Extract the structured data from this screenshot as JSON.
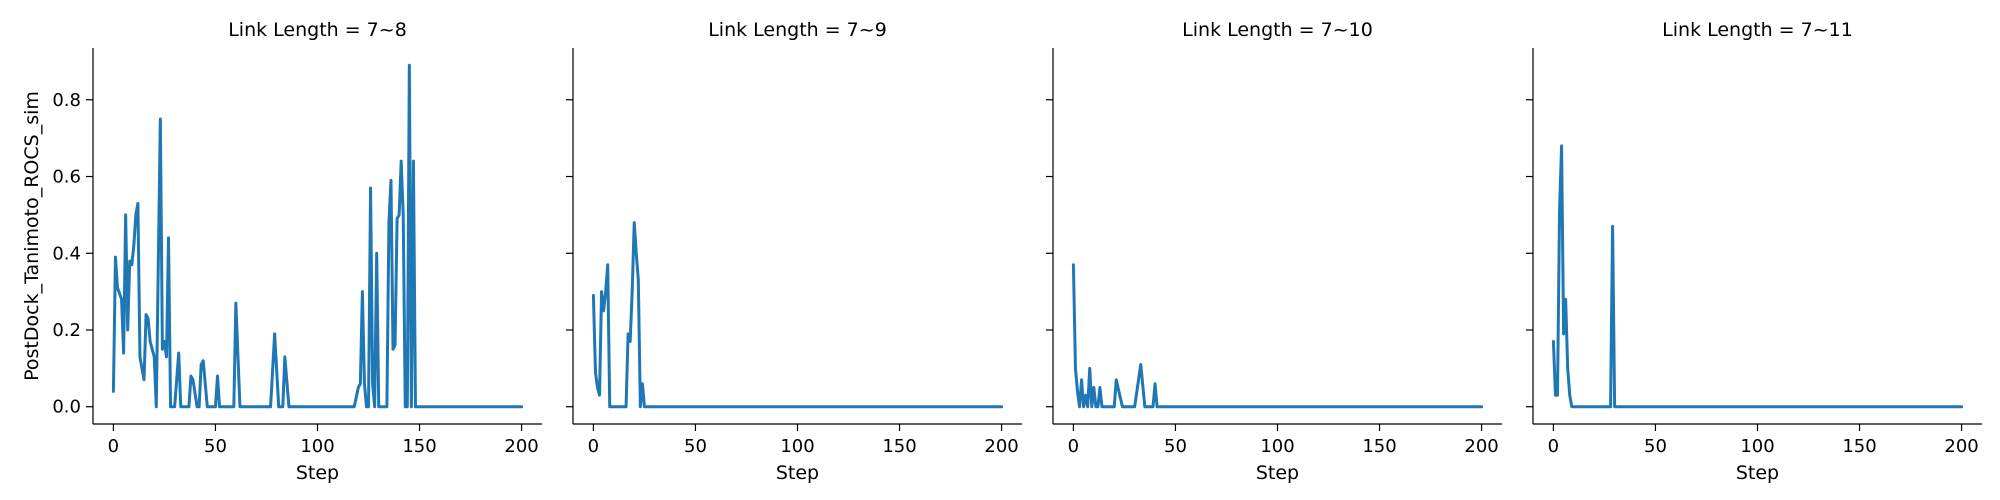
{
  "chart_data": {
    "type": "line",
    "ylabel": "PostDock_Tanimoto_ROCS_sim",
    "yticks": [
      0.0,
      0.2,
      0.4,
      0.6,
      0.8
    ],
    "ylim": [
      -0.045,
      0.935
    ],
    "xticks": [
      0,
      50,
      100,
      150,
      200
    ],
    "xlim": [
      -10,
      210
    ],
    "color": "#1f77b4",
    "grid": false,
    "panels": [
      {
        "title": "Link Length = 7~8",
        "xlabel": "Step",
        "x": [
          0,
          1,
          2,
          4,
          5,
          6,
          7,
          8,
          9,
          10,
          11,
          12,
          13,
          14,
          15,
          16,
          17,
          18,
          20,
          21,
          23,
          24,
          25,
          26,
          27,
          28,
          29,
          30,
          32,
          33,
          35,
          37,
          38,
          39,
          41,
          42,
          43,
          44,
          46,
          48,
          50,
          51,
          52,
          55,
          57,
          59,
          60,
          62,
          75,
          77,
          79,
          81,
          83,
          84,
          86,
          89,
          104,
          109,
          115,
          118,
          120,
          121,
          122,
          123,
          124,
          125,
          126,
          127,
          128,
          129,
          130,
          131,
          132,
          134,
          135,
          136,
          137,
          138,
          139,
          140,
          141,
          142,
          143,
          144,
          145,
          146,
          147,
          148,
          150,
          160,
          200
        ],
        "y": [
          0.04,
          0.39,
          0.31,
          0.28,
          0.14,
          0.5,
          0.2,
          0.38,
          0.37,
          0.42,
          0.5,
          0.53,
          0.13,
          0.1,
          0.07,
          0.24,
          0.23,
          0.17,
          0.13,
          0.0,
          0.75,
          0.15,
          0.17,
          0.13,
          0.44,
          0.0,
          0.0,
          0.0,
          0.14,
          0.0,
          0.0,
          0.0,
          0.08,
          0.07,
          0.0,
          0.0,
          0.11,
          0.12,
          0.0,
          0.0,
          0.0,
          0.08,
          0.0,
          0.0,
          0.0,
          0.0,
          0.27,
          0.0,
          0.0,
          0.0,
          0.19,
          0.0,
          0.0,
          0.13,
          0.0,
          0.0,
          0.0,
          0.0,
          0.0,
          0.0,
          0.05,
          0.06,
          0.3,
          0.06,
          0.0,
          0.0,
          0.57,
          0.06,
          0.0,
          0.4,
          0.0,
          0.0,
          0.0,
          0.0,
          0.48,
          0.59,
          0.15,
          0.16,
          0.49,
          0.5,
          0.64,
          0.5,
          0.0,
          0.0,
          0.89,
          0.0,
          0.64,
          0.0,
          0.0,
          0.0,
          0.0
        ]
      },
      {
        "title": "Link Length = 7~9",
        "xlabel": "Step",
        "x": [
          0,
          1,
          2,
          3,
          4,
          5,
          6,
          7,
          8,
          10,
          12,
          14,
          16,
          17,
          18,
          19,
          20,
          21,
          22,
          23,
          24,
          25,
          26,
          28,
          30,
          40,
          200
        ],
        "y": [
          0.29,
          0.09,
          0.05,
          0.03,
          0.3,
          0.25,
          0.3,
          0.37,
          0.0,
          0.0,
          0.0,
          0.0,
          0.0,
          0.19,
          0.17,
          0.3,
          0.48,
          0.4,
          0.33,
          0.0,
          0.06,
          0.0,
          0.0,
          0.0,
          0.0,
          0.0,
          0.0
        ]
      },
      {
        "title": "Link Length = 7~10",
        "xlabel": "Step",
        "x": [
          0,
          1,
          2,
          3,
          4,
          5,
          6,
          7,
          8,
          9,
          10,
          11,
          12,
          13,
          14,
          16,
          18,
          20,
          21,
          24,
          30,
          33,
          35,
          39,
          40,
          41,
          45,
          60,
          200
        ],
        "y": [
          0.37,
          0.1,
          0.04,
          0.0,
          0.07,
          0.0,
          0.03,
          0.0,
          0.1,
          0.0,
          0.05,
          0.0,
          0.0,
          0.05,
          0.0,
          0.0,
          0.0,
          0.0,
          0.07,
          0.0,
          0.0,
          0.11,
          0.0,
          0.0,
          0.06,
          0.0,
          0.0,
          0.0,
          0.0
        ]
      },
      {
        "title": "Link Length = 7~11",
        "xlabel": "Step",
        "x": [
          0,
          1,
          2,
          3,
          4,
          5,
          6,
          7,
          8,
          9,
          10,
          12,
          20,
          27,
          28,
          29,
          30,
          40,
          200
        ],
        "y": [
          0.17,
          0.03,
          0.03,
          0.51,
          0.68,
          0.19,
          0.28,
          0.1,
          0.03,
          0.0,
          0.0,
          0.0,
          0.0,
          0.0,
          0.0,
          0.47,
          0.0,
          0.0,
          0.0
        ]
      }
    ]
  }
}
